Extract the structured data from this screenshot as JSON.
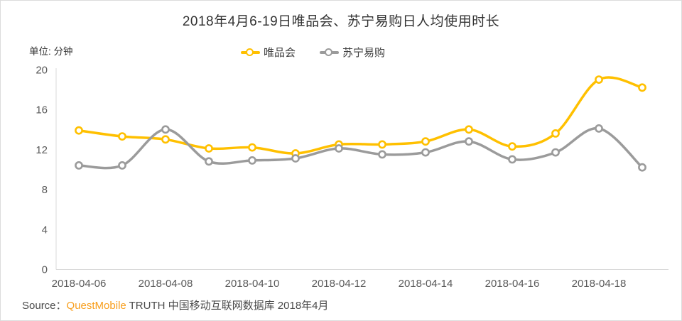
{
  "title": "2018年4月6-19日唯品会、苏宁易购日人均使用时长",
  "unit_label": "单位: 分钟",
  "legend": [
    {
      "label": "唯品会",
      "color": "#FFC000"
    },
    {
      "label": "苏宁易购",
      "color": "#9B9B9B"
    }
  ],
  "source": {
    "prefix": "Source：",
    "brand": "QuestMobile",
    "suffix": " TRUTH 中国移动互联网数据库 2018年4月",
    "brand_color": "#F89E1C"
  },
  "chart_data": {
    "type": "line",
    "title": "2018年4月6-19日唯品会、苏宁易购日人均使用时长",
    "ylabel": "单位: 分钟",
    "x": [
      "2018-04-06",
      "2018-04-07",
      "2018-04-08",
      "2018-04-09",
      "2018-04-10",
      "2018-04-11",
      "2018-04-12",
      "2018-04-13",
      "2018-04-14",
      "2018-04-15",
      "2018-04-16",
      "2018-04-17",
      "2018-04-18",
      "2018-04-19"
    ],
    "x_tick_labels": [
      "2018-04-06",
      "2018-04-08",
      "2018-04-10",
      "2018-04-12",
      "2018-04-14",
      "2018-04-16",
      "2018-04-18"
    ],
    "series": [
      {
        "name": "唯品会",
        "color": "#FFC000",
        "values": [
          13.9,
          13.3,
          13.0,
          12.1,
          12.2,
          11.6,
          12.5,
          12.5,
          12.8,
          14.0,
          12.3,
          13.6,
          19.0,
          18.2
        ]
      },
      {
        "name": "苏宁易购",
        "color": "#9B9B9B",
        "values": [
          10.4,
          10.4,
          14.0,
          10.8,
          10.9,
          11.1,
          12.1,
          11.5,
          11.7,
          12.8,
          11.0,
          11.7,
          14.1,
          10.2
        ]
      }
    ],
    "ylim": [
      0,
      20
    ],
    "yticks": [
      0,
      4,
      8,
      12,
      16,
      20
    ],
    "grid": false,
    "legend_position": "top",
    "smooth": true,
    "axis_color": "#D9D9D9",
    "tick_label_color": "#595959"
  }
}
